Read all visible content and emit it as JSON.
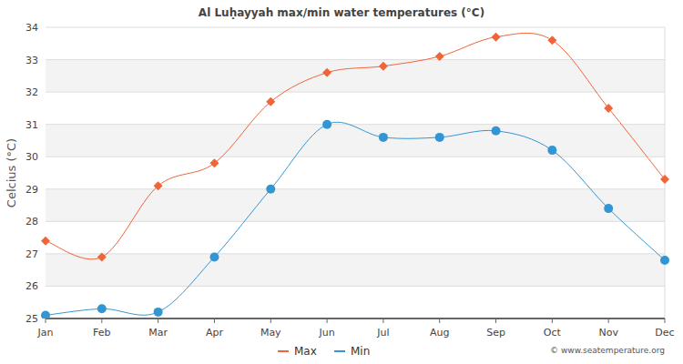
{
  "chart_data": {
    "type": "line",
    "title": "Al Luḥayyah max/min water temperatures (°C)",
    "y_label": "Celcius (°C)",
    "source": "© www.seatemperature.org",
    "categories": [
      "Jan",
      "Feb",
      "Mar",
      "Apr",
      "May",
      "Jun",
      "Jul",
      "Aug",
      "Sep",
      "Oct",
      "Nov",
      "Dec"
    ],
    "series": [
      {
        "name": "Max",
        "color": "#f0643a",
        "marker": "diamond",
        "values": [
          27.4,
          26.9,
          29.1,
          29.8,
          31.7,
          32.6,
          32.8,
          33.1,
          33.7,
          33.6,
          31.5,
          29.3
        ]
      },
      {
        "name": "Min",
        "color": "#3396d3",
        "marker": "circle",
        "values": [
          25.1,
          25.3,
          25.2,
          26.9,
          29.0,
          31.0,
          30.6,
          30.6,
          30.8,
          30.2,
          28.4,
          26.8
        ]
      }
    ],
    "ylim": [
      25,
      34
    ],
    "yticks": [
      25,
      26,
      27,
      28,
      29,
      30,
      31,
      32,
      33,
      34
    ],
    "grid": true,
    "legend": "bottom"
  }
}
